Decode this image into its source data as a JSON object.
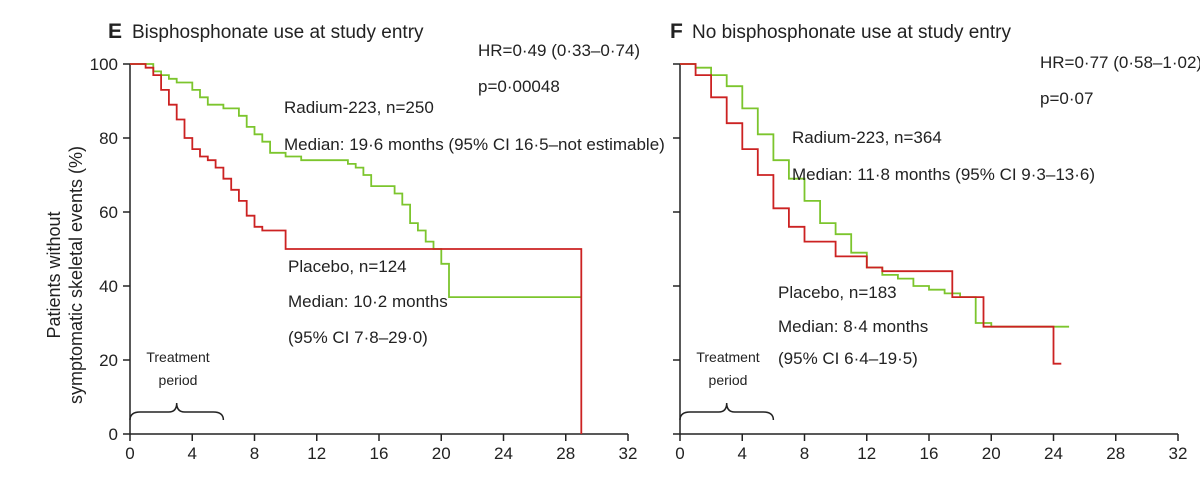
{
  "figure": {
    "ylabel_line1": "Patients without",
    "ylabel_line2": "symptomatic skeletal events (%)"
  },
  "chart_data": [
    {
      "type": "line",
      "step": true,
      "panel_letter": "E",
      "title": "Bisphosphonate use at study entry",
      "xlabel": "",
      "xlim": [
        0,
        32
      ],
      "ylim": [
        0,
        100
      ],
      "x_ticks": [
        0,
        4,
        8,
        12,
        16,
        20,
        24,
        28,
        32
      ],
      "y_ticks": [
        0,
        20,
        40,
        60,
        80,
        100
      ],
      "series": [
        {
          "name": "Radium-223, n=250",
          "color": "#7cc52d",
          "points": [
            [
              0,
              100
            ],
            [
              1,
              100
            ],
            [
              1.5,
              98
            ],
            [
              2,
              97
            ],
            [
              2.5,
              96
            ],
            [
              3,
              95
            ],
            [
              4,
              93
            ],
            [
              4.5,
              91
            ],
            [
              5,
              89
            ],
            [
              6,
              88
            ],
            [
              7,
              86
            ],
            [
              7.5,
              83
            ],
            [
              8,
              81
            ],
            [
              8.5,
              79
            ],
            [
              9,
              76
            ],
            [
              10,
              75
            ],
            [
              11,
              74
            ],
            [
              13,
              74
            ],
            [
              14,
              73
            ],
            [
              14.5,
              72
            ],
            [
              15,
              70
            ],
            [
              15.5,
              67
            ],
            [
              17,
              65
            ],
            [
              17.5,
              62
            ],
            [
              18,
              57
            ],
            [
              18.5,
              55
            ],
            [
              19,
              52
            ],
            [
              19.5,
              50
            ],
            [
              20,
              46
            ],
            [
              20.5,
              37
            ],
            [
              29,
              37
            ]
          ]
        },
        {
          "name": "Placebo, n=124",
          "color": "#cc2222",
          "points": [
            [
              0,
              100
            ],
            [
              1,
              99
            ],
            [
              1.5,
              97
            ],
            [
              2,
              93
            ],
            [
              2.5,
              89
            ],
            [
              3,
              85
            ],
            [
              3.5,
              80
            ],
            [
              4,
              77
            ],
            [
              4.5,
              75
            ],
            [
              5,
              74
            ],
            [
              5.5,
              72
            ],
            [
              6,
              69
            ],
            [
              6.5,
              66
            ],
            [
              7,
              63
            ],
            [
              7.5,
              59
            ],
            [
              8,
              56
            ],
            [
              8.5,
              55
            ],
            [
              10,
              55
            ],
            [
              10,
              50
            ],
            [
              29,
              50
            ],
            [
              29,
              0
            ]
          ]
        }
      ],
      "annotations": {
        "hr": "HR=0·49 (0·33–0·74)",
        "p": "p=0·00048",
        "radium_n": "Radium-223, n=250",
        "radium_median": "Median: 19·6 months (95% CI 16·5–not estimable)",
        "placebo_n": "Placebo, n=124",
        "placebo_median": "Median: 10·2 months",
        "placebo_ci": "(95% CI 7·8–29·0)",
        "treatment_line1": "Treatment",
        "treatment_line2": "period",
        "treatment_range": [
          0,
          6
        ]
      }
    },
    {
      "type": "line",
      "step": true,
      "panel_letter": "F",
      "title": "No bisphosphonate use at study entry",
      "xlabel": "",
      "xlim": [
        0,
        32
      ],
      "ylim": [
        0,
        100
      ],
      "x_ticks": [
        0,
        4,
        8,
        12,
        16,
        20,
        24,
        28,
        32
      ],
      "y_ticks": [
        0,
        20,
        40,
        60,
        80,
        100
      ],
      "series": [
        {
          "name": "Radium-223, n=364",
          "color": "#7cc52d",
          "points": [
            [
              0,
              100
            ],
            [
              1,
              99
            ],
            [
              2,
              97
            ],
            [
              3,
              94
            ],
            [
              4,
              88
            ],
            [
              5,
              81
            ],
            [
              6,
              74
            ],
            [
              7,
              69
            ],
            [
              8,
              63
            ],
            [
              9,
              57
            ],
            [
              10,
              54
            ],
            [
              11,
              49
            ],
            [
              12,
              45
            ],
            [
              13,
              43
            ],
            [
              14,
              42
            ],
            [
              15,
              40
            ],
            [
              16,
              39
            ],
            [
              17,
              38
            ],
            [
              18,
              37
            ],
            [
              19,
              30
            ],
            [
              20,
              29
            ],
            [
              25,
              29
            ]
          ]
        },
        {
          "name": "Placebo, n=183",
          "color": "#cc2222",
          "points": [
            [
              0,
              100
            ],
            [
              1,
              97
            ],
            [
              2,
              91
            ],
            [
              3,
              84
            ],
            [
              4,
              77
            ],
            [
              5,
              70
            ],
            [
              6,
              61
            ],
            [
              7,
              56
            ],
            [
              8,
              52
            ],
            [
              10,
              48
            ],
            [
              12,
              45
            ],
            [
              13,
              44
            ],
            [
              17.5,
              44
            ],
            [
              17.5,
              37
            ],
            [
              19.5,
              37
            ],
            [
              19.5,
              29
            ],
            [
              24,
              29
            ],
            [
              24,
              19
            ],
            [
              24.5,
              19
            ]
          ]
        }
      ],
      "annotations": {
        "hr": "HR=0·77 (0·58–1·02)",
        "p": "p=0·07",
        "radium_n": "Radium-223, n=364",
        "radium_median": "Median: 11·8 months (95% CI 9·3–13·6)",
        "placebo_n": "Placebo, n=183",
        "placebo_median": "Median: 8·4 months",
        "placebo_ci": "(95% CI 6·4–19·5)",
        "treatment_line1": "Treatment",
        "treatment_line2": "period",
        "treatment_range": [
          0,
          6
        ]
      }
    }
  ]
}
